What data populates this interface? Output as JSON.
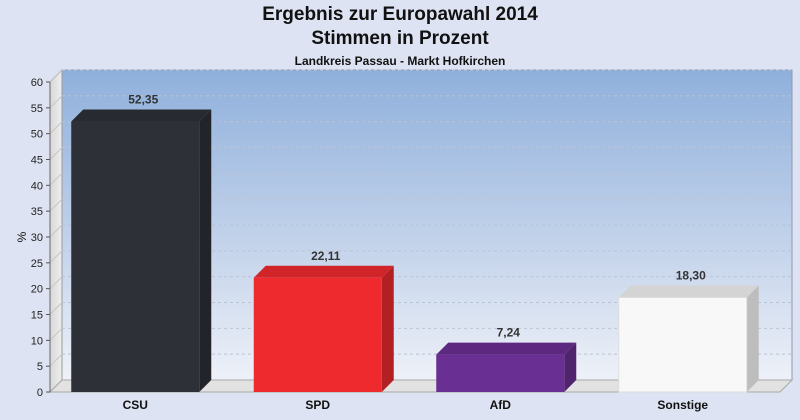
{
  "chart_data": {
    "type": "bar",
    "title": "Ergebnis zur Europawahl 2014",
    "subtitle": "Stimmen in Prozent",
    "caption": "Landkreis Passau - Markt Hofkirchen",
    "ylabel": "%",
    "ylim": [
      0,
      60
    ],
    "yticks": [
      "0",
      "5",
      "10",
      "15",
      "20",
      "25",
      "30",
      "35",
      "40",
      "45",
      "50",
      "55",
      "60"
    ],
    "categories": [
      "CSU",
      "SPD",
      "AfD",
      "Sonstige"
    ],
    "values": [
      52.35,
      22.11,
      7.24,
      18.3
    ],
    "value_labels": [
      "52,35",
      "22,11",
      "7,24",
      "18,30"
    ],
    "colors": [
      "#2e3038",
      "#ee2a2f",
      "#6a2f92",
      "#f8f8f8"
    ],
    "grid": true,
    "legend": "none"
  }
}
